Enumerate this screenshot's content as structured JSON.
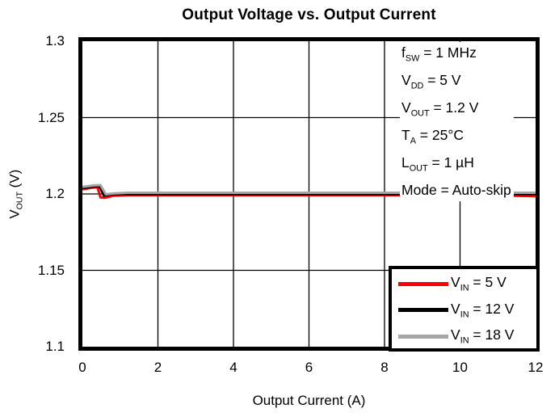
{
  "title": "Output Voltage vs. Output Current",
  "chart_data": {
    "type": "line",
    "title": "Output Voltage vs. Output Current",
    "xlabel": "Output Current (A)",
    "ylabel_parts": {
      "pre": "V",
      "sub": "OUT",
      "post": " (V)"
    },
    "xlim": [
      0,
      12
    ],
    "ylim": [
      1.1,
      1.3
    ],
    "x_ticks": [
      {
        "value": 0,
        "label": "0"
      },
      {
        "value": 2,
        "label": "2"
      },
      {
        "value": 4,
        "label": "4"
      },
      {
        "value": 6,
        "label": "6"
      },
      {
        "value": 8,
        "label": "8"
      },
      {
        "value": 10,
        "label": "10"
      },
      {
        "value": 12,
        "label": "12"
      }
    ],
    "y_ticks": [
      {
        "value": 1.3,
        "label": "1.3"
      },
      {
        "value": 1.25,
        "label": "1.25"
      },
      {
        "value": 1.2,
        "label": "1.2"
      },
      {
        "value": 1.15,
        "label": "1.15"
      },
      {
        "value": 1.1,
        "label": "1.1"
      }
    ],
    "grid": true,
    "grid_x_values": [
      2,
      4,
      6,
      8,
      10
    ],
    "grid_y_values": [
      1.15,
      1.2,
      1.25
    ],
    "axis_color": "#000000",
    "legend_position": "bottom-right",
    "series": [
      {
        "name": "VIN = 5 V",
        "label_parts": {
          "pre": "V",
          "sub": "IN",
          "post": " = 5 V"
        },
        "color": "#FF0000",
        "points": [
          [
            0,
            1.203
          ],
          [
            0.25,
            1.2041
          ],
          [
            0.4,
            1.2043
          ],
          [
            0.48,
            1.1978
          ],
          [
            0.6,
            1.1975
          ],
          [
            0.8,
            1.1988
          ],
          [
            1.2,
            1.1992
          ],
          [
            3,
            1.1992
          ],
          [
            6,
            1.1992
          ],
          [
            9,
            1.1992
          ],
          [
            11,
            1.199
          ],
          [
            12,
            1.1985
          ]
        ]
      },
      {
        "name": "VIN = 12 V",
        "label_parts": {
          "pre": "V",
          "sub": "IN",
          "post": " = 12 V"
        },
        "color": "#000000",
        "points": [
          [
            0,
            1.2038
          ],
          [
            0.28,
            1.2049
          ],
          [
            0.45,
            1.2051
          ],
          [
            0.57,
            1.199
          ],
          [
            0.72,
            1.1996
          ],
          [
            1.0,
            1.2
          ],
          [
            3,
            1.2
          ],
          [
            6,
            1.2
          ],
          [
            9,
            1.2
          ],
          [
            12,
            1.2
          ]
        ]
      },
      {
        "name": "VIN = 18 V",
        "label_parts": {
          "pre": "V",
          "sub": "IN",
          "post": " = 18 V"
        },
        "color": "#A6A6A6",
        "points": [
          [
            0,
            1.2046
          ],
          [
            0.3,
            1.2056
          ],
          [
            0.48,
            1.2058
          ],
          [
            0.62,
            1.1998
          ],
          [
            0.82,
            1.2003
          ],
          [
            1.2,
            1.2008
          ],
          [
            3,
            1.2008
          ],
          [
            6,
            1.2008
          ],
          [
            9,
            1.2008
          ],
          [
            12,
            1.2008
          ]
        ]
      }
    ],
    "annotations": [
      {
        "pre": "f",
        "sub": "SW",
        "post": " = 1 MHz"
      },
      {
        "pre": "V",
        "sub": "DD",
        "post": " = 5 V"
      },
      {
        "pre": "V",
        "sub": "OUT",
        "post": " = 1.2 V"
      },
      {
        "pre": "T",
        "sub": "A",
        "post": " = 25°C"
      },
      {
        "pre": "L",
        "sub": "OUT",
        "post": " = 1 µH"
      },
      {
        "pre": "Mode",
        "sub": "",
        "post": " = Auto-skip"
      }
    ]
  }
}
